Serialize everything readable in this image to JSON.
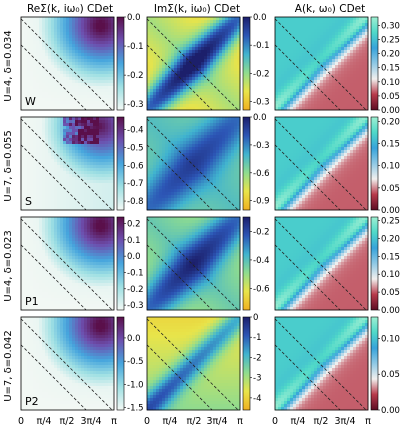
{
  "figure": {
    "column_titles": [
      "ReΣ(k, iω₀) CDet",
      "ImΣ(k, iω₀) CDet",
      "A(k, ω₀) CDet"
    ],
    "row_labels": [
      "U=4, δ=0.034",
      "U=7, δ=0.055",
      "U=4, δ=0.023",
      "U=7, δ=0.042"
    ],
    "panel_letters": [
      "W",
      "S",
      "P1",
      "P2"
    ],
    "x_tick_labels": [
      "0",
      "π/4",
      "π/2",
      "3π/4",
      "π"
    ],
    "colormaps": {
      "ReSigma": [
        "#f3f8f4",
        "#9fe0e3",
        "#46a5dd",
        "#6d4fae",
        "#5a0f4a"
      ],
      "ImSigma": [
        "#f0b020",
        "#e8e44a",
        "#8fdc8f",
        "#40b3cf",
        "#2c55b5",
        "#1c1f6b"
      ],
      "A": [
        "#5c0d22",
        "#b83a4a",
        "#f2f0ee",
        "#8fc9e5",
        "#37a3da",
        "#4fd8c8",
        "#9ff0d3"
      ]
    }
  },
  "chart_data": [
    {
      "type": "heatmap",
      "row": "U=4, δ=0.034",
      "panel": "W",
      "title": "ReΣ(k, iω₀) CDet",
      "x_range": [
        0,
        3.1416
      ],
      "y_range": [
        0,
        3.1416
      ],
      "colorbar": {
        "range": [
          -0.32,
          0.0
        ],
        "ticks": [
          "0.0",
          "-0.1",
          "-0.2",
          "-0.3"
        ],
        "tick_values": [
          0.0,
          -0.1,
          -0.2,
          -0.3
        ]
      },
      "colormap": "ReSigma",
      "pattern": "re",
      "dashed_lines": true
    },
    {
      "type": "heatmap",
      "row": "U=4, δ=0.034",
      "panel": "W",
      "title": "ImΣ(k, iω₀) CDet",
      "x_range": [
        0,
        3.1416
      ],
      "y_range": [
        0,
        3.1416
      ],
      "colorbar": {
        "range": [
          -0.33,
          0.0
        ],
        "ticks": [
          "0.0",
          "-0.1",
          "-0.2",
          "-0.3"
        ],
        "tick_values": [
          0.0,
          -0.1,
          -0.2,
          -0.3
        ]
      },
      "colormap": "ImSigma",
      "pattern": "im1",
      "dashed_lines": true
    },
    {
      "type": "heatmap",
      "row": "U=4, δ=0.034",
      "panel": "W",
      "title": "A(k, ω₀) CDet",
      "x_range": [
        0,
        3.1416
      ],
      "y_range": [
        0,
        3.1416
      ],
      "colorbar": {
        "range": [
          0.0,
          0.33
        ],
        "ticks": [
          "0.30",
          "0.25",
          "0.20",
          "0.15",
          "0.10",
          "0.05",
          "0.00"
        ],
        "tick_values": [
          0.3,
          0.25,
          0.2,
          0.15,
          0.1,
          0.05,
          0.0
        ]
      },
      "colormap": "A",
      "pattern": "a",
      "dashed_lines": true
    },
    {
      "type": "heatmap",
      "row": "U=7, δ=0.055",
      "panel": "S",
      "title": "ReΣ(k, iω₀) CDet",
      "x_range": [
        0,
        3.1416
      ],
      "y_range": [
        0,
        3.1416
      ],
      "colorbar": {
        "range": [
          -0.85,
          -0.33
        ],
        "ticks": [
          "-0.4",
          "-0.5",
          "-0.6",
          "-0.7",
          "-0.8"
        ],
        "tick_values": [
          -0.4,
          -0.5,
          -0.6,
          -0.7,
          -0.8
        ]
      },
      "colormap": "ReSigma",
      "pattern": "re_noisy",
      "dashed_lines": true
    },
    {
      "type": "heatmap",
      "row": "U=7, δ=0.055",
      "panel": "S",
      "title": "ImΣ(k, iω₀) CDet",
      "x_range": [
        0,
        3.1416
      ],
      "y_range": [
        0,
        3.1416
      ],
      "colorbar": {
        "range": [
          -1.0,
          0.0
        ],
        "ticks": [
          "0.0",
          "-0.3",
          "-0.6",
          "-0.9"
        ],
        "tick_values": [
          0.0,
          -0.3,
          -0.6,
          -0.9
        ]
      },
      "colormap": "ImSigma",
      "pattern": "im2",
      "dashed_lines": true
    },
    {
      "type": "heatmap",
      "row": "U=7, δ=0.055",
      "panel": "S",
      "title": "A(k, ω₀) CDet",
      "x_range": [
        0,
        3.1416
      ],
      "y_range": [
        0,
        3.1416
      ],
      "colorbar": {
        "range": [
          0.0,
          0.21
        ],
        "ticks": [
          "0.20",
          "0.15",
          "0.10",
          "0.05",
          "0.00"
        ],
        "tick_values": [
          0.2,
          0.15,
          0.1,
          0.05,
          0.0
        ]
      },
      "colormap": "A",
      "pattern": "a",
      "dashed_lines": true
    },
    {
      "type": "heatmap",
      "row": "U=4, δ=0.023",
      "panel": "P1",
      "title": "ReΣ(k, iω₀) CDet",
      "x_range": [
        0,
        3.1416
      ],
      "y_range": [
        0,
        3.1416
      ],
      "colorbar": {
        "range": [
          -0.33,
          0.24
        ],
        "ticks": [
          "0.2",
          "0.1",
          "0.0",
          "-0.1",
          "-0.2",
          "-0.3"
        ],
        "tick_values": [
          0.2,
          0.1,
          0.0,
          -0.1,
          -0.2,
          -0.3
        ]
      },
      "colormap": "ReSigma",
      "pattern": "re",
      "dashed_lines": true
    },
    {
      "type": "heatmap",
      "row": "U=4, δ=0.023",
      "panel": "P1",
      "title": "ImΣ(k, iω₀) CDet",
      "x_range": [
        0,
        3.1416
      ],
      "y_range": [
        0,
        3.1416
      ],
      "colorbar": {
        "range": [
          -0.75,
          -0.1
        ],
        "ticks": [
          "-0.2",
          "-0.4",
          "-0.6"
        ],
        "tick_values": [
          -0.2,
          -0.4,
          -0.6
        ]
      },
      "colormap": "ImSigma",
      "pattern": "im3",
      "dashed_lines": true
    },
    {
      "type": "heatmap",
      "row": "U=4, δ=0.023",
      "panel": "P1",
      "title": "A(k, ω₀) CDet",
      "x_range": [
        0,
        3.1416
      ],
      "y_range": [
        0,
        3.1416
      ],
      "colorbar": {
        "range": [
          0.0,
          0.26
        ],
        "ticks": [
          "0.25",
          "0.20",
          "0.15",
          "0.10",
          "0.05",
          "0.00"
        ],
        "tick_values": [
          0.25,
          0.2,
          0.15,
          0.1,
          0.05,
          0.0
        ]
      },
      "colormap": "A",
      "pattern": "a",
      "dashed_lines": true
    },
    {
      "type": "heatmap",
      "row": "U=7, δ=0.042",
      "panel": "P2",
      "title": "ReΣ(k, iω₀) CDet",
      "x_range": [
        0,
        3.1416
      ],
      "y_range": [
        0,
        3.1416
      ],
      "colorbar": {
        "range": [
          -1.55,
          0.45
        ],
        "ticks": [
          "0.0",
          "-0.5",
          "-1.0",
          "-1.5"
        ],
        "tick_values": [
          0.0,
          -0.5,
          -1.0,
          -1.5
        ]
      },
      "colormap": "ReSigma",
      "pattern": "re",
      "dashed_lines": true
    },
    {
      "type": "heatmap",
      "row": "U=7, δ=0.042",
      "panel": "P2",
      "title": "ImΣ(k, iω₀) CDet",
      "x_range": [
        0,
        3.1416
      ],
      "y_range": [
        0,
        3.1416
      ],
      "colorbar": {
        "range": [
          -4.6,
          0.0
        ],
        "ticks": [
          "0",
          "-1",
          "-2",
          "-3",
          "-4"
        ],
        "tick_values": [
          0,
          -1,
          -2,
          -3,
          -4
        ]
      },
      "colormap": "ImSigma",
      "pattern": "im4",
      "dashed_lines": true
    },
    {
      "type": "heatmap",
      "row": "U=7, δ=0.042",
      "panel": "P2",
      "title": "A(k, ω₀) CDet",
      "x_range": [
        0,
        3.1416
      ],
      "y_range": [
        0,
        3.1416
      ],
      "colorbar": {
        "range": [
          0.0,
          0.13
        ],
        "ticks": [
          "0.10",
          "0.05",
          "0.00"
        ],
        "tick_values": [
          0.1,
          0.05,
          0.0
        ]
      },
      "colormap": "A",
      "pattern": "a",
      "dashed_lines": true
    }
  ]
}
